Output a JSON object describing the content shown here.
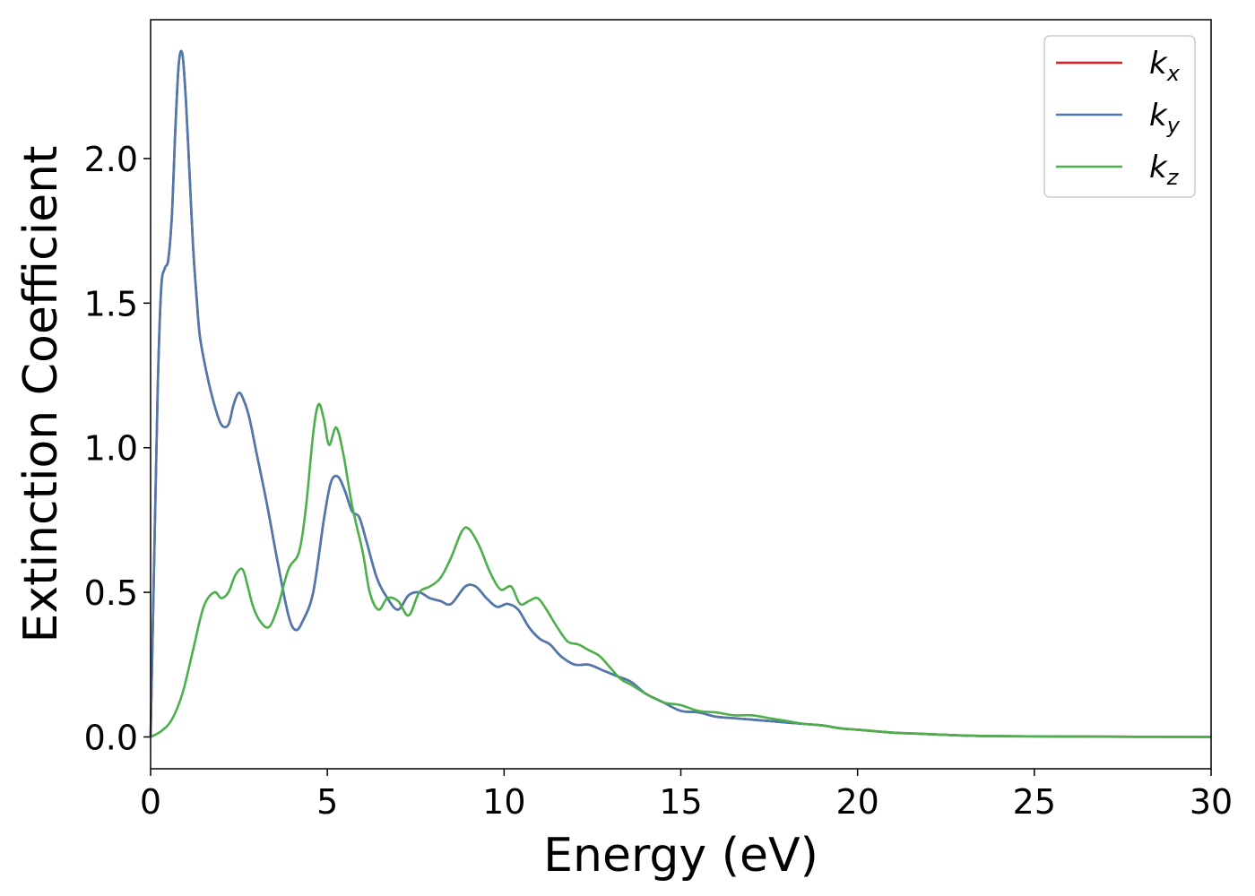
{
  "chart_data": {
    "type": "line",
    "xlabel": "Energy (eV)",
    "ylabel": "Extinction Coefficient",
    "xlim": [
      0,
      30
    ],
    "ylim": [
      -0.11,
      2.48
    ],
    "xticks": [
      0,
      5,
      10,
      15,
      20,
      25,
      30
    ],
    "yticks": [
      0.0,
      0.5,
      1.0,
      1.5,
      2.0
    ],
    "xtick_labels": [
      "0",
      "5",
      "10",
      "15",
      "20",
      "25",
      "30"
    ],
    "ytick_labels": [
      "0.0",
      "0.5",
      "1.0",
      "1.5",
      "2.0"
    ],
    "grid": false,
    "legend_position": "top-right",
    "series": [
      {
        "name": "k_x",
        "label_base": "k",
        "label_sub": "x",
        "color": "#e41a1c",
        "x": [
          0,
          0.1,
          0.2,
          0.3,
          0.4,
          0.5,
          0.6,
          0.7,
          0.8,
          0.9,
          1.0,
          1.1,
          1.2,
          1.3,
          1.4,
          1.6,
          1.8,
          2.0,
          2.2,
          2.35,
          2.5,
          2.65,
          2.8,
          3.0,
          3.3,
          3.6,
          3.9,
          4.1,
          4.3,
          4.6,
          4.9,
          5.1,
          5.3,
          5.5,
          5.7,
          5.9,
          6.1,
          6.4,
          6.7,
          7.0,
          7.3,
          7.6,
          7.9,
          8.2,
          8.5,
          8.9,
          9.2,
          9.5,
          9.8,
          10.1,
          10.4,
          10.7,
          11.0,
          11.3,
          11.6,
          12.0,
          12.4,
          12.8,
          13.2,
          13.6,
          14.0,
          14.5,
          15.0,
          15.5,
          16.0,
          16.5,
          17.0,
          17.5,
          18.0,
          18.5,
          19.0,
          19.5,
          20.0,
          21.0,
          22.0,
          23.0,
          24.0,
          25.0,
          27.0,
          30.0
        ],
        "y": [
          0.0,
          0.6,
          1.2,
          1.55,
          1.62,
          1.65,
          1.8,
          2.1,
          2.33,
          2.36,
          2.2,
          1.95,
          1.7,
          1.52,
          1.38,
          1.25,
          1.15,
          1.08,
          1.08,
          1.15,
          1.19,
          1.16,
          1.1,
          0.98,
          0.8,
          0.6,
          0.42,
          0.37,
          0.4,
          0.5,
          0.75,
          0.88,
          0.9,
          0.85,
          0.78,
          0.76,
          0.68,
          0.55,
          0.48,
          0.44,
          0.49,
          0.5,
          0.48,
          0.47,
          0.46,
          0.52,
          0.52,
          0.48,
          0.45,
          0.46,
          0.44,
          0.38,
          0.34,
          0.32,
          0.28,
          0.25,
          0.25,
          0.23,
          0.21,
          0.19,
          0.15,
          0.12,
          0.09,
          0.085,
          0.07,
          0.065,
          0.06,
          0.055,
          0.05,
          0.045,
          0.04,
          0.03,
          0.025,
          0.015,
          0.01,
          0.005,
          0.003,
          0.002,
          0.001,
          0.0
        ]
      },
      {
        "name": "k_y",
        "label_base": "k",
        "label_sub": "y",
        "color": "#4a7ab0",
        "x": [
          0,
          0.1,
          0.2,
          0.3,
          0.4,
          0.5,
          0.6,
          0.7,
          0.8,
          0.9,
          1.0,
          1.1,
          1.2,
          1.3,
          1.4,
          1.6,
          1.8,
          2.0,
          2.2,
          2.35,
          2.5,
          2.65,
          2.8,
          3.0,
          3.3,
          3.6,
          3.9,
          4.1,
          4.3,
          4.6,
          4.9,
          5.1,
          5.3,
          5.5,
          5.7,
          5.9,
          6.1,
          6.4,
          6.7,
          7.0,
          7.3,
          7.6,
          7.9,
          8.2,
          8.5,
          8.9,
          9.2,
          9.5,
          9.8,
          10.1,
          10.4,
          10.7,
          11.0,
          11.3,
          11.6,
          12.0,
          12.4,
          12.8,
          13.2,
          13.6,
          14.0,
          14.5,
          15.0,
          15.5,
          16.0,
          16.5,
          17.0,
          17.5,
          18.0,
          18.5,
          19.0,
          19.5,
          20.0,
          21.0,
          22.0,
          23.0,
          24.0,
          25.0,
          27.0,
          30.0
        ],
        "y": [
          0.0,
          0.6,
          1.2,
          1.55,
          1.62,
          1.65,
          1.8,
          2.1,
          2.33,
          2.36,
          2.2,
          1.95,
          1.7,
          1.52,
          1.38,
          1.25,
          1.15,
          1.08,
          1.08,
          1.15,
          1.19,
          1.16,
          1.1,
          0.98,
          0.8,
          0.6,
          0.42,
          0.37,
          0.4,
          0.5,
          0.75,
          0.88,
          0.9,
          0.85,
          0.78,
          0.76,
          0.68,
          0.55,
          0.48,
          0.44,
          0.49,
          0.5,
          0.48,
          0.47,
          0.46,
          0.52,
          0.52,
          0.48,
          0.45,
          0.46,
          0.44,
          0.38,
          0.34,
          0.32,
          0.28,
          0.25,
          0.25,
          0.23,
          0.21,
          0.19,
          0.15,
          0.12,
          0.09,
          0.085,
          0.07,
          0.065,
          0.06,
          0.055,
          0.05,
          0.045,
          0.04,
          0.03,
          0.025,
          0.015,
          0.01,
          0.005,
          0.003,
          0.002,
          0.001,
          0.0
        ]
      },
      {
        "name": "k_z",
        "label_base": "k",
        "label_sub": "z",
        "color": "#4daf4a",
        "x": [
          0,
          0.3,
          0.6,
          0.9,
          1.2,
          1.5,
          1.8,
          2.0,
          2.2,
          2.4,
          2.6,
          2.75,
          2.9,
          3.1,
          3.35,
          3.6,
          3.9,
          4.2,
          4.4,
          4.6,
          4.75,
          4.9,
          5.05,
          5.25,
          5.45,
          5.7,
          6.0,
          6.2,
          6.45,
          6.7,
          7.0,
          7.3,
          7.6,
          7.9,
          8.2,
          8.5,
          8.8,
          9.0,
          9.3,
          9.6,
          9.9,
          10.2,
          10.45,
          10.7,
          10.95,
          11.2,
          11.5,
          11.8,
          12.1,
          12.4,
          12.7,
          13.0,
          13.3,
          13.6,
          14.0,
          14.5,
          15.0,
          15.5,
          16.0,
          16.5,
          17.0,
          17.5,
          18.0,
          18.5,
          19.0,
          19.5,
          20.0,
          21.0,
          22.0,
          23.0,
          24.0,
          25.0,
          27.0,
          30.0
        ],
        "y": [
          0.0,
          0.02,
          0.06,
          0.15,
          0.3,
          0.45,
          0.5,
          0.48,
          0.5,
          0.56,
          0.58,
          0.52,
          0.45,
          0.4,
          0.38,
          0.45,
          0.58,
          0.64,
          0.8,
          1.05,
          1.15,
          1.1,
          1.01,
          1.07,
          0.98,
          0.8,
          0.64,
          0.5,
          0.44,
          0.48,
          0.47,
          0.42,
          0.5,
          0.52,
          0.55,
          0.62,
          0.71,
          0.72,
          0.66,
          0.57,
          0.51,
          0.52,
          0.46,
          0.47,
          0.48,
          0.44,
          0.38,
          0.33,
          0.32,
          0.3,
          0.28,
          0.24,
          0.2,
          0.18,
          0.15,
          0.12,
          0.11,
          0.09,
          0.085,
          0.075,
          0.075,
          0.065,
          0.055,
          0.045,
          0.04,
          0.03,
          0.025,
          0.015,
          0.01,
          0.005,
          0.003,
          0.002,
          0.001,
          0.0
        ]
      }
    ]
  }
}
